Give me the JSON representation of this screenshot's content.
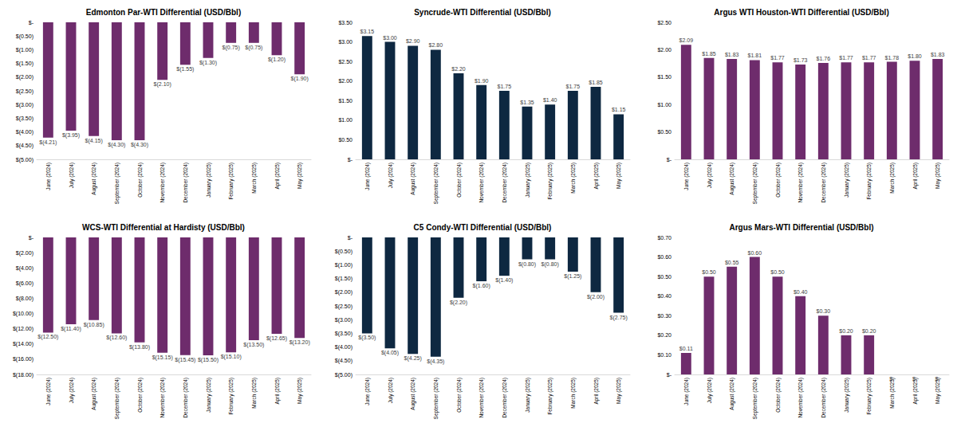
{
  "chart_data": [
    {
      "type": "bar",
      "title": "Edmonton Par-WTI Differential (USD/Bbl)",
      "categories": [
        "June (2024)",
        "July (2024)",
        "August (2024)",
        "September (2024)",
        "October (2024)",
        "November (2024)",
        "December (2024)",
        "January (2025)",
        "February (2025)",
        "March (2025)",
        "April (2025)",
        "May (2025)"
      ],
      "values": [
        -4.21,
        -3.95,
        -4.15,
        -4.3,
        -4.3,
        -2.1,
        -1.55,
        -1.3,
        -0.75,
        -0.75,
        -1.2,
        -1.9
      ],
      "value_labels": [
        "$(4.21)",
        "$(3.95)",
        "$(4.15)",
        "$(4.30)",
        "$(4.30)",
        "$(2.10)",
        "$(1.55)",
        "$(1.30)",
        "$(0.75)",
        "$(0.75)",
        "$(1.20)",
        "$(1.90)"
      ],
      "color": "#6e2c6c",
      "data_labels": true,
      "grid": false,
      "ylim": [
        -5,
        0
      ],
      "yticks": [
        {
          "value": -5,
          "label": "$(5.00)"
        },
        {
          "value": -4.5,
          "label": "$(4.50)"
        },
        {
          "value": -4,
          "label": "$(4.00)"
        },
        {
          "value": -3.5,
          "label": "$(3.50)"
        },
        {
          "value": -3,
          "label": "$(3.00)"
        },
        {
          "value": -2.5,
          "label": "$(2.50)"
        },
        {
          "value": -2,
          "label": "$(2.00)"
        },
        {
          "value": -1.5,
          "label": "$(1.50)"
        },
        {
          "value": -1,
          "label": "$(1.00)"
        },
        {
          "value": -0.5,
          "label": "$(0.50)"
        },
        {
          "value": 0,
          "label": "$-"
        }
      ]
    },
    {
      "type": "bar",
      "title": "Syncrude-WTI Differential (USD/Bbl)",
      "categories": [
        "June (2024)",
        "July (2024)",
        "August (2024)",
        "September (2024)",
        "October (2024)",
        "November (2024)",
        "December (2024)",
        "January (2025)",
        "February (2025)",
        "March (2025)",
        "April (2025)",
        "May (2025)"
      ],
      "values": [
        3.15,
        3.0,
        2.9,
        2.8,
        2.2,
        1.9,
        1.75,
        1.35,
        1.4,
        1.75,
        1.85,
        1.15
      ],
      "value_labels": [
        "$3.15",
        "$3.00",
        "$2.90",
        "$2.80",
        "$2.20",
        "$1.90",
        "$1.75",
        "$1.35",
        "$1.40",
        "$1.75",
        "$1.85",
        "$1.15"
      ],
      "color": "#0e2841",
      "data_labels": true,
      "grid": false,
      "ylim": [
        0,
        3.5
      ],
      "yticks": [
        {
          "value": 0,
          "label": "$-"
        },
        {
          "value": 0.5,
          "label": "$0.50"
        },
        {
          "value": 1,
          "label": "$1.00"
        },
        {
          "value": 1.5,
          "label": "$1.50"
        },
        {
          "value": 2,
          "label": "$2.00"
        },
        {
          "value": 2.5,
          "label": "$2.50"
        },
        {
          "value": 3,
          "label": "$3.00"
        },
        {
          "value": 3.5,
          "label": "$3.50"
        }
      ]
    },
    {
      "type": "bar",
      "title": "Argus WTI Houston-WTI Differential (USD/Bbl)",
      "categories": [
        "June (2024)",
        "July (2024)",
        "August (2024)",
        "September (2024)",
        "October (2024)",
        "November (2024)",
        "December (2024)",
        "January (2025)",
        "February (2025)",
        "March (2025)",
        "April (2025)",
        "May (2025)"
      ],
      "values": [
        2.09,
        1.85,
        1.83,
        1.81,
        1.77,
        1.73,
        1.76,
        1.77,
        1.77,
        1.78,
        1.8,
        1.83
      ],
      "value_labels": [
        "$2.09",
        "$1.85",
        "$1.83",
        "$1.81",
        "$1.77",
        "$1.73",
        "$1.76",
        "$1.77",
        "$1.77",
        "$1.78",
        "$1.80",
        "$1.83"
      ],
      "color": "#6e2c6c",
      "data_labels": true,
      "grid": false,
      "ylim": [
        0,
        2.5
      ],
      "yticks": [
        {
          "value": 0,
          "label": "$-"
        },
        {
          "value": 0.5,
          "label": "$0.50"
        },
        {
          "value": 1,
          "label": "$1.00"
        },
        {
          "value": 1.5,
          "label": "$1.50"
        },
        {
          "value": 2,
          "label": "$2.00"
        },
        {
          "value": 2.5,
          "label": "$2.50"
        }
      ]
    },
    {
      "type": "bar",
      "title": "WCS-WTI Differential at Hardisty (USD/Bbl)",
      "categories": [
        "June (2024)",
        "July (2024)",
        "August (2024)",
        "September (2024)",
        "October (2024)",
        "November (2024)",
        "December (2024)",
        "January (2025)",
        "February (2025)",
        "March (2025)",
        "April (2025)",
        "May (2025)"
      ],
      "values": [
        -12.5,
        -11.4,
        -10.85,
        -12.6,
        -13.8,
        -15.15,
        -15.45,
        -15.5,
        -15.1,
        -13.5,
        -12.65,
        -13.2
      ],
      "value_labels": [
        "$(12.50)",
        "$(11.40)",
        "$(10.85)",
        "$(12.60)",
        "$(13.80)",
        "$(15.15)",
        "$(15.45)",
        "$(15.50)",
        "$(15.10)",
        "$(13.50)",
        "$(12.65)",
        "$(13.20)"
      ],
      "color": "#6e2c6c",
      "data_labels": true,
      "grid": false,
      "ylim": [
        -18,
        0
      ],
      "yticks": [
        {
          "value": -18,
          "label": "$(18.00)"
        },
        {
          "value": -16,
          "label": "$(16.00)"
        },
        {
          "value": -14,
          "label": "$(14.00)"
        },
        {
          "value": -12,
          "label": "$(12.00)"
        },
        {
          "value": -10,
          "label": "$(10.00)"
        },
        {
          "value": -8,
          "label": "$(8.00)"
        },
        {
          "value": -6,
          "label": "$(6.00)"
        },
        {
          "value": -4,
          "label": "$(4.00)"
        },
        {
          "value": -2,
          "label": "$(2.00)"
        },
        {
          "value": 0,
          "label": "$-"
        }
      ]
    },
    {
      "type": "bar",
      "title": "C5 Condy-WTI Differential (USD/Bbl)",
      "categories": [
        "June (2024)",
        "July (2024)",
        "August (2024)",
        "September (2024)",
        "October (2024)",
        "November (2024)",
        "December (2024)",
        "January (2025)",
        "February (2025)",
        "March (2025)",
        "April (2025)",
        "May (2025)"
      ],
      "values": [
        -3.5,
        -4.05,
        -4.25,
        -4.35,
        -2.2,
        -1.6,
        -1.4,
        -0.8,
        -0.8,
        -1.25,
        -2.0,
        -2.75
      ],
      "value_labels": [
        "$(3.50)",
        "$(4.05)",
        "$(4.25)",
        "$(4.35)",
        "$(2.20)",
        "$(1.60)",
        "$(1.40)",
        "$(0.80)",
        "$(0.80)",
        "$(1.25)",
        "$(2.00)",
        "$(2.75)"
      ],
      "color": "#0e2841",
      "data_labels": true,
      "grid": false,
      "ylim": [
        -5,
        0
      ],
      "yticks": [
        {
          "value": -5,
          "label": "$(5.00)"
        },
        {
          "value": -4.5,
          "label": "$(4.50)"
        },
        {
          "value": -4,
          "label": "$(4.00)"
        },
        {
          "value": -3.5,
          "label": "$(3.50)"
        },
        {
          "value": -3,
          "label": "$(3.00)"
        },
        {
          "value": -2.5,
          "label": "$(2.50)"
        },
        {
          "value": -2,
          "label": "$(2.00)"
        },
        {
          "value": -1.5,
          "label": "$(1.50)"
        },
        {
          "value": -1,
          "label": "$(1.00)"
        },
        {
          "value": -0.5,
          "label": "$(0.50)"
        },
        {
          "value": 0,
          "label": "$-"
        }
      ]
    },
    {
      "type": "bar",
      "title": "Argus Mars-WTI Differential (USD/Bbl)",
      "categories": [
        "June (2024)",
        "July (2024)",
        "August (2024)",
        "September (2024)",
        "October (2024)",
        "November (2024)",
        "December (2024)",
        "January (2025)",
        "February (2025)",
        "March (2025)",
        "April (2025)",
        "May (2025)"
      ],
      "values": [
        0.11,
        0.5,
        0.55,
        0.6,
        0.5,
        0.4,
        0.3,
        0.2,
        0.2,
        0,
        0,
        0
      ],
      "value_labels": [
        "$0.11",
        "$0.50",
        "$0.55",
        "$0.60",
        "$0.50",
        "$0.40",
        "$0.30",
        "$0.20",
        "$0.20",
        "$-",
        "$-",
        "$-"
      ],
      "color": "#6e2c6c",
      "data_labels": true,
      "grid": false,
      "ylim": [
        0,
        0.7
      ],
      "yticks": [
        {
          "value": 0,
          "label": "$-"
        },
        {
          "value": 0.1,
          "label": "$0.10"
        },
        {
          "value": 0.2,
          "label": "$0.20"
        },
        {
          "value": 0.3,
          "label": "$0.30"
        },
        {
          "value": 0.4,
          "label": "$0.40"
        },
        {
          "value": 0.5,
          "label": "$0.50"
        },
        {
          "value": 0.6,
          "label": "$0.60"
        },
        {
          "value": 0.7,
          "label": "$0.70"
        }
      ]
    }
  ]
}
